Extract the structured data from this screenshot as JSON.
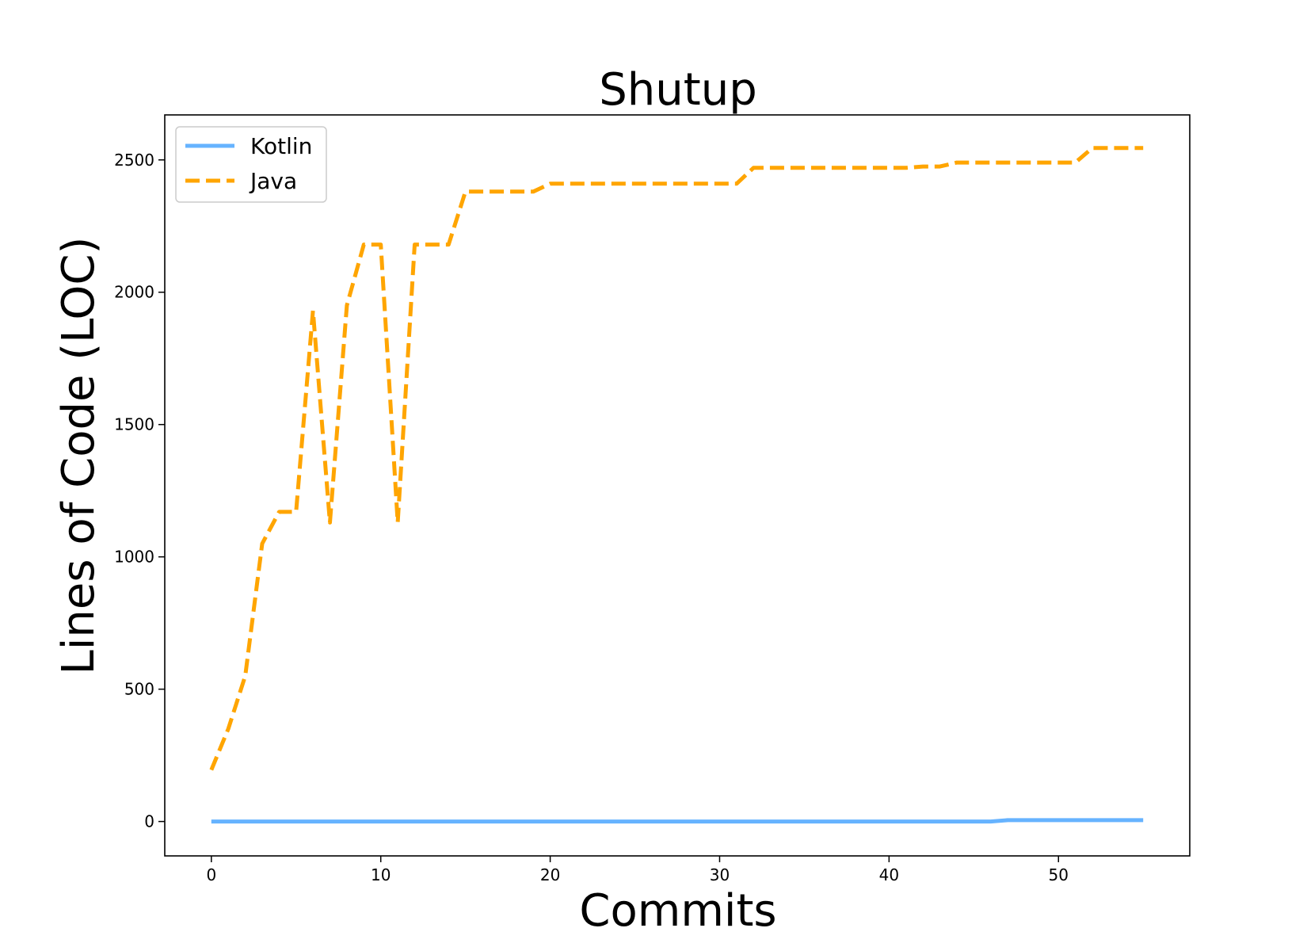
{
  "chart_data": {
    "type": "line",
    "title": "Shutup",
    "xlabel": "Commits",
    "ylabel": "Lines of Code (LOC)",
    "xlim": [
      -2.75,
      57.75
    ],
    "ylim": [
      -130,
      2670
    ],
    "xticks": [
      0,
      10,
      20,
      30,
      40,
      50
    ],
    "yticks": [
      0,
      500,
      1000,
      1500,
      2000,
      2500
    ],
    "grid": false,
    "legend_position": "top-left",
    "x": [
      0,
      1,
      2,
      3,
      4,
      5,
      6,
      7,
      8,
      9,
      10,
      11,
      12,
      13,
      14,
      15,
      16,
      17,
      18,
      19,
      20,
      21,
      22,
      23,
      24,
      25,
      26,
      27,
      28,
      29,
      30,
      31,
      32,
      33,
      34,
      35,
      36,
      37,
      38,
      39,
      40,
      41,
      42,
      43,
      44,
      45,
      46,
      47,
      48,
      49,
      50,
      51,
      52,
      53,
      54,
      55
    ],
    "series": [
      {
        "name": "Kotlin",
        "color": "#66b3ff",
        "style": "solid",
        "values": [
          0,
          0,
          0,
          0,
          0,
          0,
          0,
          0,
          0,
          0,
          0,
          0,
          0,
          0,
          0,
          0,
          0,
          0,
          0,
          0,
          0,
          0,
          0,
          0,
          0,
          0,
          0,
          0,
          0,
          0,
          0,
          0,
          0,
          0,
          0,
          0,
          0,
          0,
          0,
          0,
          0,
          0,
          0,
          0,
          0,
          0,
          0,
          5,
          5,
          5,
          5,
          5,
          5,
          5,
          5,
          5
        ]
      },
      {
        "name": "Java",
        "color": "#ffa500",
        "style": "dashed",
        "values": [
          195,
          350,
          550,
          1050,
          1170,
          1170,
          1930,
          1130,
          1950,
          2180,
          2180,
          1130,
          2180,
          2180,
          2180,
          2380,
          2380,
          2380,
          2380,
          2380,
          2410,
          2410,
          2410,
          2410,
          2410,
          2410,
          2410,
          2410,
          2410,
          2410,
          2410,
          2410,
          2470,
          2470,
          2470,
          2470,
          2470,
          2470,
          2470,
          2470,
          2470,
          2470,
          2475,
          2475,
          2490,
          2490,
          2490,
          2490,
          2490,
          2490,
          2490,
          2490,
          2545,
          2545,
          2545,
          2545
        ]
      }
    ]
  }
}
